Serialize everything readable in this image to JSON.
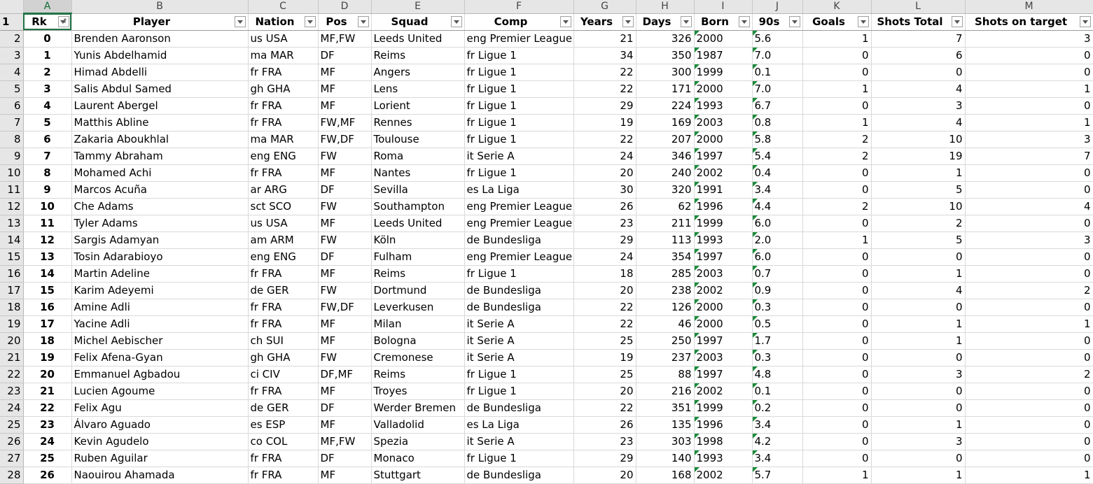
{
  "column_letters": [
    "A",
    "B",
    "C",
    "D",
    "E",
    "F",
    "G",
    "H",
    "I",
    "J",
    "K",
    "L",
    "M"
  ],
  "headers": [
    "Rk",
    "Player",
    "Nation",
    "Pos",
    "Squad",
    "Comp",
    "Years",
    "Days",
    "Born",
    "90s",
    "Goals",
    "Shots Total",
    "Shots on target"
  ],
  "header_row_number": "1",
  "rows": [
    {
      "n": "2",
      "c": [
        "0",
        "Brenden Aaronson",
        "us USA",
        "MF,FW",
        "Leeds United",
        "eng Premier League",
        "21",
        "326",
        "2000",
        "5.6",
        "1",
        "7",
        "3"
      ]
    },
    {
      "n": "3",
      "c": [
        "1",
        "Yunis Abdelhamid",
        "ma MAR",
        "DF",
        "Reims",
        "fr Ligue 1",
        "34",
        "350",
        "1987",
        "7.0",
        "0",
        "6",
        "0"
      ]
    },
    {
      "n": "4",
      "c": [
        "2",
        "Himad Abdelli",
        "fr FRA",
        "MF",
        "Angers",
        "fr Ligue 1",
        "22",
        "300",
        "1999",
        "0.1",
        "0",
        "0",
        "0"
      ]
    },
    {
      "n": "5",
      "c": [
        "3",
        "Salis Abdul Samed",
        "gh GHA",
        "MF",
        "Lens",
        "fr Ligue 1",
        "22",
        "171",
        "2000",
        "7.0",
        "1",
        "4",
        "1"
      ]
    },
    {
      "n": "6",
      "c": [
        "4",
        "Laurent Abergel",
        "fr FRA",
        "MF",
        "Lorient",
        "fr Ligue 1",
        "29",
        "224",
        "1993",
        "6.7",
        "0",
        "3",
        "0"
      ]
    },
    {
      "n": "7",
      "c": [
        "5",
        "Matthis Abline",
        "fr FRA",
        "FW,MF",
        "Rennes",
        "fr Ligue 1",
        "19",
        "169",
        "2003",
        "0.8",
        "1",
        "4",
        "1"
      ]
    },
    {
      "n": "8",
      "c": [
        "6",
        "Zakaria Aboukhlal",
        "ma MAR",
        "FW,DF",
        "Toulouse",
        "fr Ligue 1",
        "22",
        "207",
        "2000",
        "5.8",
        "2",
        "10",
        "3"
      ]
    },
    {
      "n": "9",
      "c": [
        "7",
        "Tammy Abraham",
        "eng ENG",
        "FW",
        "Roma",
        "it Serie A",
        "24",
        "346",
        "1997",
        "5.4",
        "2",
        "19",
        "7"
      ]
    },
    {
      "n": "10",
      "c": [
        "8",
        "Mohamed Achi",
        "fr FRA",
        "MF",
        "Nantes",
        "fr Ligue 1",
        "20",
        "240",
        "2002",
        "0.4",
        "0",
        "1",
        "0"
      ]
    },
    {
      "n": "11",
      "c": [
        "9",
        "Marcos Acuña",
        "ar ARG",
        "DF",
        "Sevilla",
        "es La Liga",
        "30",
        "320",
        "1991",
        "3.4",
        "0",
        "5",
        "0"
      ]
    },
    {
      "n": "12",
      "c": [
        "10",
        "Che Adams",
        "sct SCO",
        "FW",
        "Southampton",
        "eng Premier League",
        "26",
        "62",
        "1996",
        "4.4",
        "2",
        "10",
        "4"
      ]
    },
    {
      "n": "13",
      "c": [
        "11",
        "Tyler Adams",
        "us USA",
        "MF",
        "Leeds United",
        "eng Premier League",
        "23",
        "211",
        "1999",
        "6.0",
        "0",
        "2",
        "0"
      ]
    },
    {
      "n": "14",
      "c": [
        "12",
        "Sargis Adamyan",
        "am ARM",
        "FW",
        "Köln",
        "de Bundesliga",
        "29",
        "113",
        "1993",
        "2.0",
        "1",
        "5",
        "3"
      ]
    },
    {
      "n": "15",
      "c": [
        "13",
        "Tosin Adarabioyo",
        "eng ENG",
        "DF",
        "Fulham",
        "eng Premier League",
        "24",
        "354",
        "1997",
        "6.0",
        "0",
        "0",
        "0"
      ]
    },
    {
      "n": "16",
      "c": [
        "14",
        "Martin Adeline",
        "fr FRA",
        "MF",
        "Reims",
        "fr Ligue 1",
        "18",
        "285",
        "2003",
        "0.7",
        "0",
        "1",
        "0"
      ]
    },
    {
      "n": "17",
      "c": [
        "15",
        "Karim Adeyemi",
        "de GER",
        "FW",
        "Dortmund",
        "de Bundesliga",
        "20",
        "238",
        "2002",
        "0.9",
        "0",
        "4",
        "2"
      ]
    },
    {
      "n": "18",
      "c": [
        "16",
        "Amine Adli",
        "fr FRA",
        "FW,DF",
        "Leverkusen",
        "de Bundesliga",
        "22",
        "126",
        "2000",
        "0.3",
        "0",
        "0",
        "0"
      ]
    },
    {
      "n": "19",
      "c": [
        "17",
        "Yacine Adli",
        "fr FRA",
        "MF",
        "Milan",
        "it Serie A",
        "22",
        "46",
        "2000",
        "0.5",
        "0",
        "1",
        "1"
      ]
    },
    {
      "n": "20",
      "c": [
        "18",
        "Michel Aebischer",
        "ch SUI",
        "MF",
        "Bologna",
        "it Serie A",
        "25",
        "250",
        "1997",
        "1.7",
        "0",
        "1",
        "0"
      ]
    },
    {
      "n": "21",
      "c": [
        "19",
        "Felix Afena-Gyan",
        "gh GHA",
        "FW",
        "Cremonese",
        "it Serie A",
        "19",
        "237",
        "2003",
        "0.3",
        "0",
        "0",
        "0"
      ]
    },
    {
      "n": "22",
      "c": [
        "20",
        "Emmanuel Agbadou",
        "ci CIV",
        "DF,MF",
        "Reims",
        "fr Ligue 1",
        "25",
        "88",
        "1997",
        "4.8",
        "0",
        "3",
        "2"
      ]
    },
    {
      "n": "23",
      "c": [
        "21",
        "Lucien Agoume",
        "fr FRA",
        "MF",
        "Troyes",
        "fr Ligue 1",
        "20",
        "216",
        "2002",
        "0.1",
        "0",
        "0",
        "0"
      ]
    },
    {
      "n": "24",
      "c": [
        "22",
        "Felix Agu",
        "de GER",
        "DF",
        "Werder Bremen",
        "de Bundesliga",
        "22",
        "351",
        "1999",
        "0.2",
        "0",
        "0",
        "0"
      ]
    },
    {
      "n": "25",
      "c": [
        "23",
        "Álvaro Aguado",
        "es ESP",
        "MF",
        "Valladolid",
        "es La Liga",
        "26",
        "135",
        "1996",
        "3.4",
        "0",
        "1",
        "0"
      ]
    },
    {
      "n": "26",
      "c": [
        "24",
        "Kevin Agudelo",
        "co COL",
        "MF,FW",
        "Spezia",
        "it Serie A",
        "23",
        "303",
        "1998",
        "4.2",
        "0",
        "3",
        "0"
      ]
    },
    {
      "n": "27",
      "c": [
        "25",
        "Ruben Aguilar",
        "fr FRA",
        "DF",
        "Monaco",
        "fr Ligue 1",
        "29",
        "140",
        "1993",
        "3.4",
        "0",
        "0",
        "0"
      ]
    },
    {
      "n": "28",
      "c": [
        "26",
        "Naouirou Ahamada",
        "fr FRA",
        "MF",
        "Stuttgart",
        "de Bundesliga",
        "20",
        "168",
        "2002",
        "5.7",
        "1",
        "1",
        "1"
      ]
    }
  ],
  "colors": {
    "accent": "#217346",
    "number_warning_triangle": "#1a8b3a"
  },
  "icons": {
    "filter": "filter-dropdown-icon",
    "sorted_filter": "sort-ascending-filter-icon"
  }
}
